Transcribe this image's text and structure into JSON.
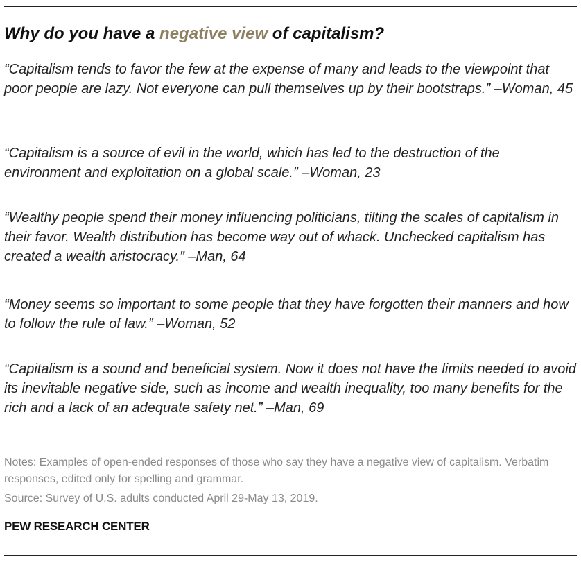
{
  "title": {
    "before": "Why do you have a ",
    "highlight": "negative view",
    "after": " of capitalism?"
  },
  "quotes": [
    "“Capitalism tends to favor the few at the expense of many and leads to the viewpoint that poor people are lazy. Not everyone can pull themselves up by their bootstraps.” –Woman, 45",
    "“Capitalism is a source of evil in the world, which has led to the destruction of the environment and exploitation on a global scale.” –Woman, 23",
    "“Wealthy people spend their money influencing politicians, tilting the scales of capitalism in their favor. Wealth distribution has become way out of whack. Unchecked capitalism has created a wealth aristocracy.” –Man, 64",
    "“Money seems so important to some people that they have forgotten their manners and how to follow the rule of law.” –Woman, 52",
    "“Capitalism is a sound and beneficial system. Now it does not have the limits needed to avoid its inevitable negative side, such as income and wealth inequality, too many benefits for the rich and a lack of an adequate safety net.” –Man, 69"
  ],
  "notes": "Notes: Examples of open-ended responses of those who say they have a negative view of capitalism. Verbatim responses, edited only for spelling and grammar.",
  "source": "Source: Survey of U.S. adults conducted April 29-May 13, 2019.",
  "organization": "PEW RESEARCH CENTER",
  "colors": {
    "highlight": "#8c8060",
    "text": "#222222",
    "notes": "#8a8a8a"
  }
}
